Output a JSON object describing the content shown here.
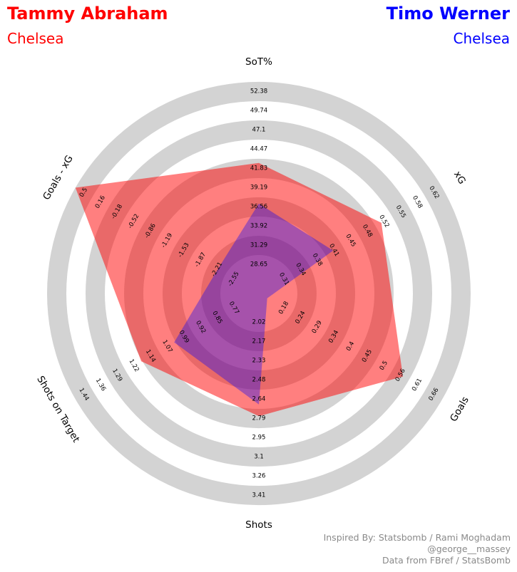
{
  "header": {
    "player1": {
      "name": "Tammy Abraham",
      "team": "Chelsea",
      "color": "#ff0000"
    },
    "player2": {
      "name": "Timo Werner",
      "team": "Chelsea",
      "color": "#0000ff"
    }
  },
  "credits": [
    "Inspired By: Statsbomb / Rami Moghadam",
    "@george__massey",
    "Data from FBref / StatsBomb"
  ],
  "chart_data": {
    "type": "radar",
    "ring_color": "#d3d3d3",
    "axes": [
      {
        "label": "SoT%",
        "ticks": [
          "28.65",
          "31.29",
          "33.92",
          "36.56",
          "39.19",
          "41.83",
          "44.47",
          "47.1",
          "49.74",
          "52.38"
        ],
        "min": 26.02,
        "max": 52.38
      },
      {
        "label": "xG",
        "ticks": [
          "0.31",
          "0.34",
          "0.38",
          "0.41",
          "0.45",
          "0.48",
          "0.52",
          "0.55",
          "0.58",
          "0.62"
        ],
        "min": 0.275,
        "max": 0.62
      },
      {
        "label": "Goals",
        "ticks": [
          "0.18",
          "0.24",
          "0.29",
          "0.34",
          "0.4",
          "0.45",
          "0.5",
          "0.56",
          "0.61",
          "0.66"
        ],
        "min": 0.126,
        "max": 0.66
      },
      {
        "label": "Shots",
        "ticks": [
          "2.02",
          "2.17",
          "2.33",
          "2.48",
          "2.64",
          "2.79",
          "2.95",
          "3.1",
          "3.26",
          "3.41"
        ],
        "min": 1.865,
        "max": 3.41
      },
      {
        "label": "Shots on Target",
        "ticks": [
          "0.77",
          "0.85",
          "0.92",
          "0.99",
          "1.07",
          "1.14",
          "1.22",
          "1.29",
          "1.36",
          "1.44"
        ],
        "min": 0.695,
        "max": 1.44
      },
      {
        "label": "Goals - xG",
        "ticks": [
          "-2.55",
          "-2.21",
          "-1.87",
          "-1.53",
          "-1.19",
          "-0.86",
          "-0.52",
          "-0.18",
          "0.16",
          "0.5"
        ],
        "min": -2.89,
        "max": 0.5
      }
    ],
    "series": [
      {
        "name": "Tammy Abraham",
        "color": "#ff0000",
        "opacity": 0.5,
        "values": [
          41.8,
          0.5,
          0.54,
          2.73,
          1.16,
          0.5
        ]
      },
      {
        "name": "Timo Werner",
        "color": "#0000ff",
        "opacity": 0.35,
        "values": [
          36.5,
          0.405,
          0.126,
          2.64,
          1.02,
          -2.25
        ]
      }
    ]
  }
}
